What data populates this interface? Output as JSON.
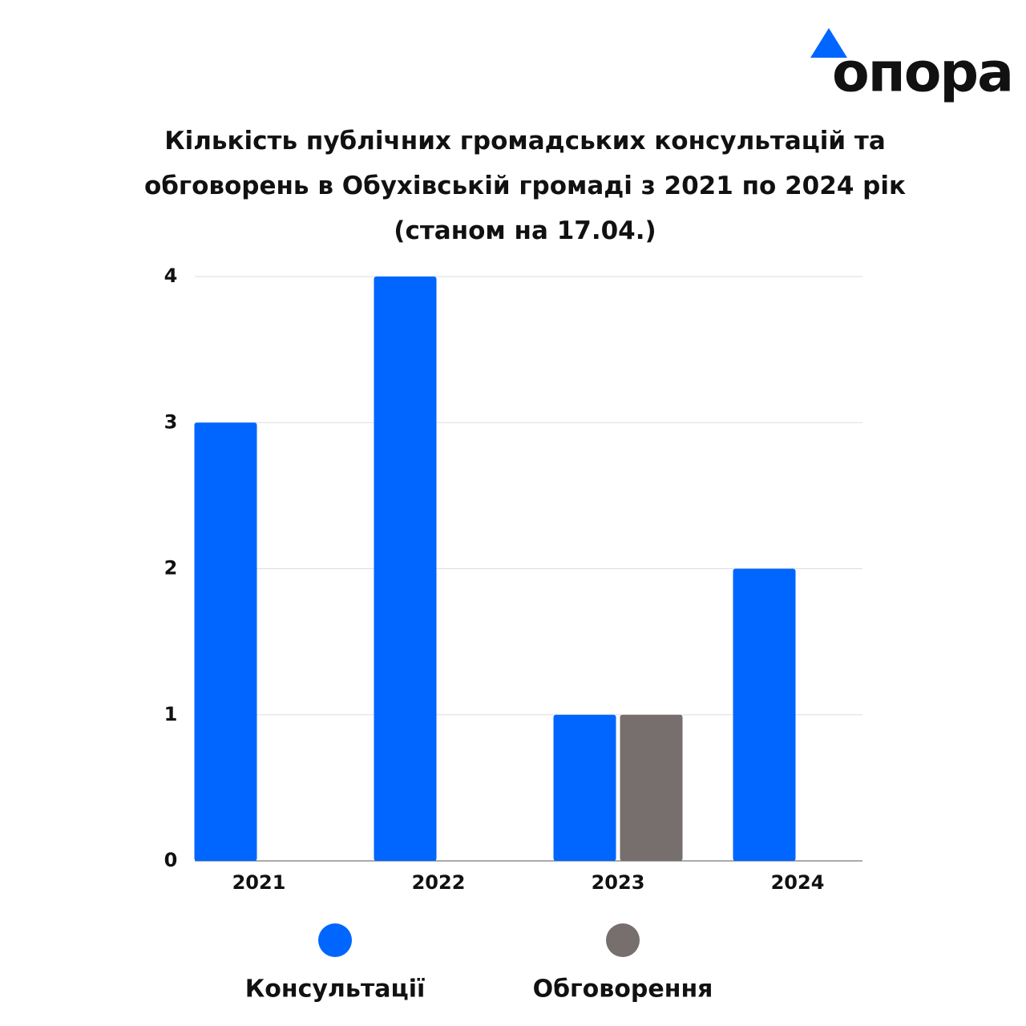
{
  "logo": "опора",
  "chart_data": {
    "type": "bar",
    "title": "Кількість публічних громадських консультацій та обговорень в Обухівській громаді з 2021 по 2024 рік (станом на 17.04.)",
    "categories": [
      "2021",
      "2022",
      "2023",
      "2024"
    ],
    "series": [
      {
        "name": "Консультації",
        "color": "#0066ff",
        "values": [
          3,
          4,
          1,
          2
        ]
      },
      {
        "name": "Обговорення",
        "color": "#776e6e",
        "values": [
          0,
          0,
          1,
          0
        ]
      }
    ],
    "ylim": [
      0,
      4
    ],
    "yticks": [
      0,
      1,
      2,
      3,
      4
    ],
    "grid": true
  }
}
